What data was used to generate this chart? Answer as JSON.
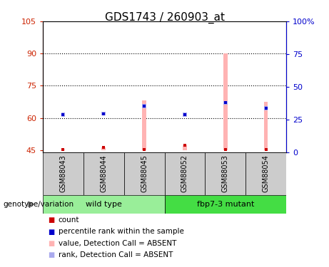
{
  "title": "GDS1743 / 260903_at",
  "samples": [
    "GSM88043",
    "GSM88044",
    "GSM88045",
    "GSM88052",
    "GSM88053",
    "GSM88054"
  ],
  "group_labels": [
    "wild type",
    "fbp7-3 mutant"
  ],
  "group_color_wt": "#99ee99",
  "group_color_mut": "#44dd44",
  "ylim_left": [
    44,
    105
  ],
  "ylim_right": [
    0,
    100
  ],
  "yticks_left": [
    45,
    60,
    75,
    90,
    105
  ],
  "yticks_right": [
    0,
    25,
    50,
    75,
    100
  ],
  "ytick_labels_left": [
    "45",
    "60",
    "75",
    "90",
    "105"
  ],
  "ytick_labels_right": [
    "0",
    "25",
    "50",
    "75",
    "100%"
  ],
  "hlines": [
    60,
    75,
    90
  ],
  "bar_tops": [
    45.4,
    46.2,
    68.0,
    47.2,
    90.0,
    67.5
  ],
  "bar_bottom": 45,
  "bar_color": "#ffb3b3",
  "rank_tops": [
    61.5,
    62.0,
    65.5,
    61.5,
    67.0,
    64.5
  ],
  "rank_color": "#aaaaee",
  "count_y": [
    45.4,
    46.2,
    45.4,
    47.2,
    45.4,
    45.4
  ],
  "count_color": "#cc0000",
  "pct_y": [
    61.5,
    62.0,
    65.5,
    61.5,
    67.0,
    64.5
  ],
  "pct_color": "#0000cc",
  "left_color": "#cc2200",
  "right_color": "#0000cc",
  "legend_items": [
    {
      "label": "count",
      "color": "#cc0000"
    },
    {
      "label": "percentile rank within the sample",
      "color": "#0000cc"
    },
    {
      "label": "value, Detection Call = ABSENT",
      "color": "#ffb3b3"
    },
    {
      "label": "rank, Detection Call = ABSENT",
      "color": "#aaaaee"
    }
  ]
}
